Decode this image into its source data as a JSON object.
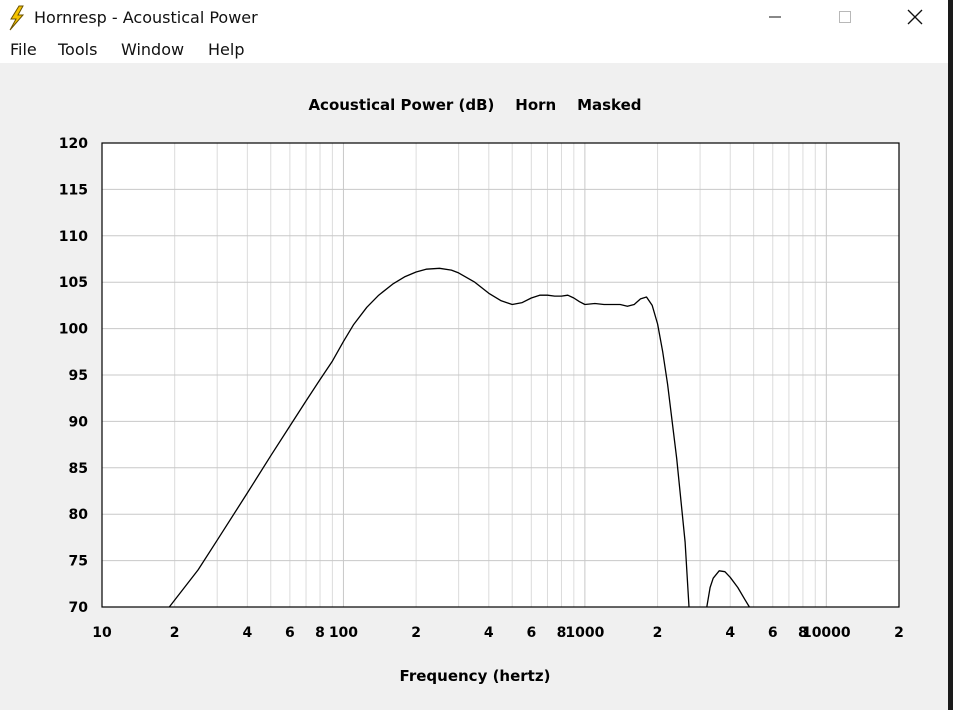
{
  "window": {
    "title": "Hornresp - Acoustical Power",
    "icon": "lightning-bolt-icon",
    "controls": [
      "minimize-icon",
      "maximize-icon",
      "close-icon"
    ]
  },
  "menu": {
    "file": "File",
    "tools": "Tools",
    "window": "Window",
    "help": "Help"
  },
  "colors": {
    "background": "#f0f0f0",
    "plot_background": "#ffffff",
    "grid": "#c8c8c8",
    "grid_minor": "#dcdcdc",
    "curve": "#000000",
    "icon_yellow": "#f5c400"
  },
  "chart_data": {
    "type": "line",
    "title": "Acoustical Power (dB)    Horn    Masked",
    "xlabel": "Frequency (hertz)",
    "ylabel": "",
    "xscale": "log",
    "xlim": [
      10,
      20000
    ],
    "ylim": [
      70,
      120
    ],
    "grid": true,
    "y_ticks": [
      70,
      75,
      80,
      85,
      90,
      95,
      100,
      105,
      110,
      115,
      120
    ],
    "x_tick_labels": [
      {
        "value": 10,
        "label": "10"
      },
      {
        "value": 20,
        "label": "2"
      },
      {
        "value": 40,
        "label": "4"
      },
      {
        "value": 60,
        "label": "6"
      },
      {
        "value": 80,
        "label": "8"
      },
      {
        "value": 100,
        "label": "100"
      },
      {
        "value": 200,
        "label": "2"
      },
      {
        "value": 400,
        "label": "4"
      },
      {
        "value": 600,
        "label": "6"
      },
      {
        "value": 800,
        "label": "8"
      },
      {
        "value": 1000,
        "label": "1000"
      },
      {
        "value": 2000,
        "label": "2"
      },
      {
        "value": 4000,
        "label": "4"
      },
      {
        "value": 6000,
        "label": "6"
      },
      {
        "value": 8000,
        "label": "8"
      },
      {
        "value": 10000,
        "label": "10000"
      },
      {
        "value": 20000,
        "label": "2"
      }
    ],
    "series": [
      {
        "values": [
          [
            19,
            70
          ],
          [
            25,
            74
          ],
          [
            30,
            77.2
          ],
          [
            40,
            82.3
          ],
          [
            50,
            86.3
          ],
          [
            60,
            89.5
          ],
          [
            70,
            92.2
          ],
          [
            80,
            94.5
          ],
          [
            90,
            96.5
          ],
          [
            100,
            98.6
          ],
          [
            110,
            100.4
          ],
          [
            125,
            102.3
          ],
          [
            140,
            103.6
          ],
          [
            160,
            104.8
          ],
          [
            180,
            105.6
          ],
          [
            200,
            106.1
          ],
          [
            220,
            106.4
          ],
          [
            250,
            106.5
          ],
          [
            280,
            106.3
          ],
          [
            300,
            106
          ],
          [
            350,
            105
          ],
          [
            400,
            103.8
          ],
          [
            450,
            103
          ],
          [
            500,
            102.6
          ],
          [
            550,
            102.8
          ],
          [
            600,
            103.3
          ],
          [
            650,
            103.6
          ],
          [
            700,
            103.6
          ],
          [
            750,
            103.5
          ],
          [
            800,
            103.5
          ],
          [
            850,
            103.6
          ],
          [
            900,
            103.3
          ],
          [
            950,
            102.9
          ],
          [
            1000,
            102.6
          ],
          [
            1100,
            102.7
          ],
          [
            1200,
            102.6
          ],
          [
            1400,
            102.6
          ],
          [
            1500,
            102.4
          ],
          [
            1600,
            102.6
          ],
          [
            1700,
            103.2
          ],
          [
            1800,
            103.4
          ],
          [
            1900,
            102.5
          ],
          [
            2000,
            100.5
          ],
          [
            2100,
            97.5
          ],
          [
            2200,
            94
          ],
          [
            2400,
            86
          ],
          [
            2600,
            77
          ],
          [
            2700,
            70
          ]
        ]
      },
      {
        "values": [
          [
            3200,
            70
          ],
          [
            3300,
            72.1
          ],
          [
            3400,
            73.1
          ],
          [
            3600,
            73.9
          ],
          [
            3800,
            73.8
          ],
          [
            4000,
            73.2
          ],
          [
            4300,
            72.1
          ],
          [
            4600,
            70.8
          ],
          [
            4800,
            70
          ]
        ]
      }
    ]
  }
}
